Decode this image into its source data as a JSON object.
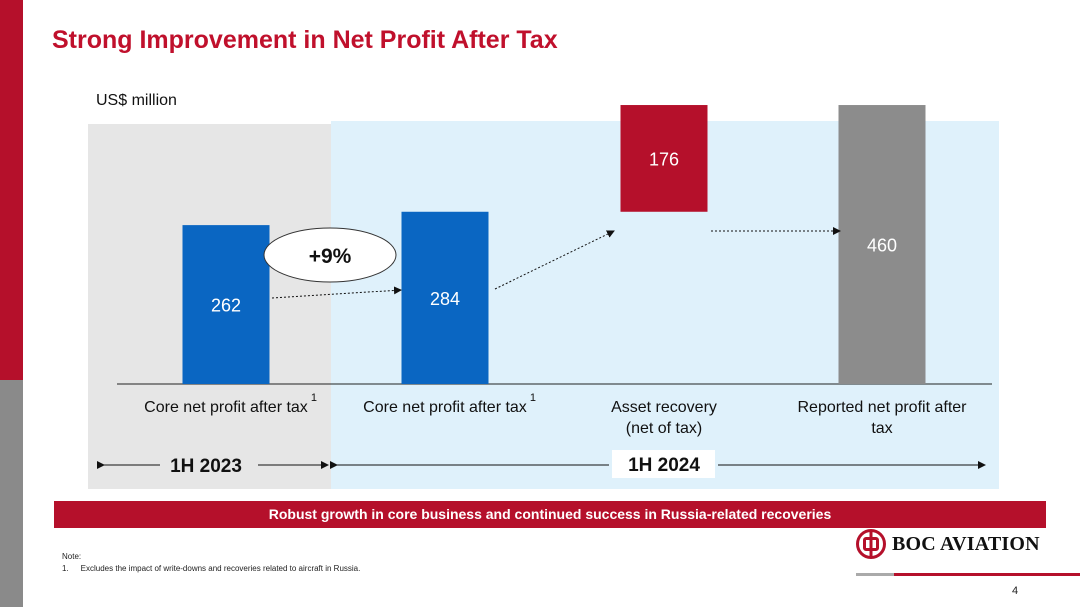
{
  "slide": {
    "title": "Strong Improvement in Net Profit After Tax",
    "unit_label": "US$ million",
    "growth_label": "+9%",
    "period_1": "1H 2023",
    "period_2": "1H 2024",
    "footnote_marker": "1",
    "banner": "Robust growth in core business and continued success in Russia-related recoveries",
    "note_title": "Note:",
    "note_number": "1.",
    "note_text": "Excludes the impact of write-downs and recoveries related to aircraft in Russia.",
    "logo_text": "BOC AVIATION",
    "page_number": "4"
  },
  "colors": {
    "brand_red": "#b5102b",
    "bar_blue": "#0a66c2",
    "bar_grey": "#8c8c8c"
  },
  "chart_data": {
    "type": "bar",
    "subtype": "waterfall",
    "title": "",
    "ylabel": "US$ million",
    "ylim": [
      0,
      620
    ],
    "categories": [
      "Core net profit after tax",
      "Core net profit after tax",
      "Asset recovery\n(net of tax)",
      "Reported net profit after\ntax"
    ],
    "footnoted": [
      true,
      true,
      false,
      false
    ],
    "bars": [
      {
        "value": 262,
        "base": 0,
        "label": "262",
        "color": "#0a66c2"
      },
      {
        "value": 284,
        "base": 0,
        "label": "284",
        "color": "#0a66c2"
      },
      {
        "value": 176,
        "base": 284,
        "label": "176",
        "color": "#b5102b"
      },
      {
        "value": 460,
        "base": 0,
        "label": "460",
        "color": "#8c8c8c"
      }
    ]
  }
}
